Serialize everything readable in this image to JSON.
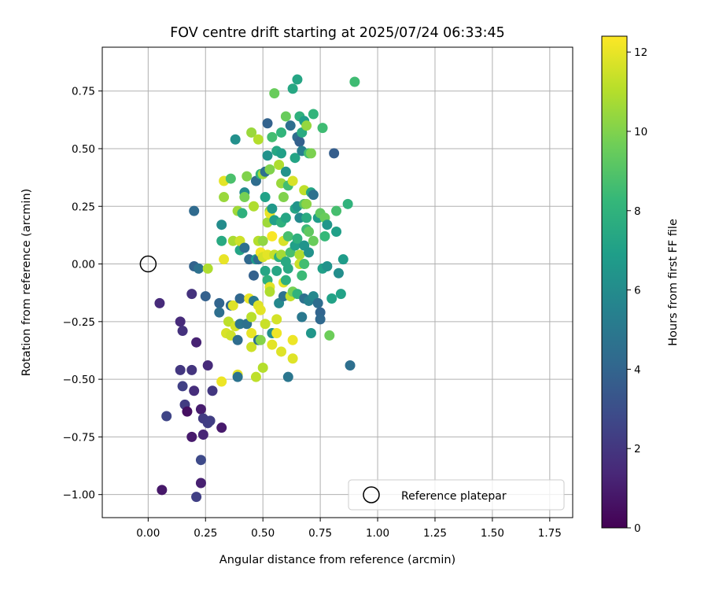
{
  "chart_data": {
    "type": "scatter",
    "title": "FOV centre drift starting at 2025/07/24 06:33:45",
    "xlabel": "Angular distance from reference (arcmin)",
    "ylabel": "Rotation from reference (arcmin)",
    "xlim": [
      -0.2,
      1.85
    ],
    "ylim": [
      -1.1,
      0.94
    ],
    "x_ticks": [
      "0.00",
      "0.25",
      "0.50",
      "0.75",
      "1.00",
      "1.25",
      "1.50",
      "1.75"
    ],
    "x_tick_values": [
      0,
      0.25,
      0.5,
      0.75,
      1.0,
      1.25,
      1.5,
      1.75
    ],
    "y_ticks": [
      "0.75",
      "0.50",
      "0.25",
      "0.00",
      "−0.25",
      "−0.50",
      "−0.75",
      "−1.00"
    ],
    "y_tick_values": [
      0.75,
      0.5,
      0.25,
      0.0,
      -0.25,
      -0.5,
      -0.75,
      -1.0
    ],
    "grid": true,
    "colormap": "viridis",
    "colormap_stops": [
      "#440154",
      "#482878",
      "#3e4989",
      "#31688e",
      "#26828e",
      "#1f9e89",
      "#35b779",
      "#6ece58",
      "#b5de2b",
      "#fde725"
    ],
    "colorbar": {
      "label": "Hours from first FF file",
      "range": [
        0,
        12.4
      ],
      "ticks": [
        "0",
        "2",
        "4",
        "6",
        "8",
        "10",
        "12"
      ],
      "tick_values": [
        0,
        2,
        4,
        6,
        8,
        10,
        12
      ]
    },
    "legend": {
      "placement": "lower-right",
      "entries": [
        "Reference platepar"
      ]
    },
    "reference_point": {
      "x": 0.0,
      "y": 0.0,
      "label": "Reference platepar"
    },
    "points": [
      {
        "x": 0.05,
        "y": -0.17,
        "t": 1.5
      },
      {
        "x": 0.06,
        "y": -0.98,
        "t": 0.8
      },
      {
        "x": 0.08,
        "y": -0.66,
        "t": 2.6
      },
      {
        "x": 0.14,
        "y": -0.25,
        "t": 1.5
      },
      {
        "x": 0.15,
        "y": -0.29,
        "t": 1.8
      },
      {
        "x": 0.14,
        "y": -0.46,
        "t": 2.0
      },
      {
        "x": 0.15,
        "y": -0.53,
        "t": 2.4
      },
      {
        "x": 0.16,
        "y": -0.61,
        "t": 2.2
      },
      {
        "x": 0.17,
        "y": -0.64,
        "t": 0.5
      },
      {
        "x": 0.19,
        "y": -0.13,
        "t": 1.8
      },
      {
        "x": 0.19,
        "y": -0.46,
        "t": 1.9
      },
      {
        "x": 0.19,
        "y": -0.75,
        "t": 0.9
      },
      {
        "x": 0.2,
        "y": -0.55,
        "t": 1.6
      },
      {
        "x": 0.21,
        "y": -0.34,
        "t": 1.2
      },
      {
        "x": 0.21,
        "y": -1.01,
        "t": 2.4
      },
      {
        "x": 0.23,
        "y": -0.63,
        "t": 1.0
      },
      {
        "x": 0.23,
        "y": -0.85,
        "t": 2.8
      },
      {
        "x": 0.24,
        "y": -0.74,
        "t": 1.3
      },
      {
        "x": 0.24,
        "y": -0.67,
        "t": 2.2
      },
      {
        "x": 0.26,
        "y": -0.69,
        "t": 2.3
      },
      {
        "x": 0.26,
        "y": -0.44,
        "t": 1.5
      },
      {
        "x": 0.27,
        "y": -0.68,
        "t": 2.3
      },
      {
        "x": 0.28,
        "y": -0.55,
        "t": 2.0
      },
      {
        "x": 0.23,
        "y": -0.95,
        "t": 1.1
      },
      {
        "x": 0.32,
        "y": -0.71,
        "t": 0.9
      },
      {
        "x": 0.2,
        "y": 0.23,
        "t": 4.3
      },
      {
        "x": 0.2,
        "y": -0.01,
        "t": 3.9
      },
      {
        "x": 0.22,
        "y": -0.02,
        "t": 4.6
      },
      {
        "x": 0.25,
        "y": -0.14,
        "t": 3.8
      },
      {
        "x": 0.26,
        "y": -0.02,
        "t": 10.9
      },
      {
        "x": 0.31,
        "y": -0.17,
        "t": 4.0
      },
      {
        "x": 0.31,
        "y": -0.21,
        "t": 4.5
      },
      {
        "x": 0.32,
        "y": 0.1,
        "t": 7.5
      },
      {
        "x": 0.32,
        "y": 0.17,
        "t": 6.0
      },
      {
        "x": 0.33,
        "y": 0.29,
        "t": 10.5
      },
      {
        "x": 0.33,
        "y": 0.36,
        "t": 11.9
      },
      {
        "x": 0.33,
        "y": 0.02,
        "t": 12.0
      },
      {
        "x": 0.32,
        "y": -0.51,
        "t": 12.1
      },
      {
        "x": 0.34,
        "y": -0.3,
        "t": 11.7
      },
      {
        "x": 0.35,
        "y": -0.25,
        "t": 11.2
      },
      {
        "x": 0.36,
        "y": -0.31,
        "t": 11.5
      },
      {
        "x": 0.36,
        "y": 0.37,
        "t": 8.8
      },
      {
        "x": 0.36,
        "y": -0.18,
        "t": 4.2
      },
      {
        "x": 0.37,
        "y": 0.1,
        "t": 10.8
      },
      {
        "x": 0.37,
        "y": -0.18,
        "t": 11.8
      },
      {
        "x": 0.38,
        "y": 0.54,
        "t": 6.2
      },
      {
        "x": 0.38,
        "y": -0.27,
        "t": 11.6
      },
      {
        "x": 0.39,
        "y": 0.23,
        "t": 10.6
      },
      {
        "x": 0.39,
        "y": -0.33,
        "t": 4.4
      },
      {
        "x": 0.39,
        "y": -0.48,
        "t": 11.9
      },
      {
        "x": 0.39,
        "y": -0.49,
        "t": 4.7
      },
      {
        "x": 0.4,
        "y": 0.06,
        "t": 7.2
      },
      {
        "x": 0.4,
        "y": 0.1,
        "t": 11.5
      },
      {
        "x": 0.4,
        "y": -0.26,
        "t": 4.9
      },
      {
        "x": 0.4,
        "y": -0.15,
        "t": 4.1
      },
      {
        "x": 0.41,
        "y": 0.22,
        "t": 7.9
      },
      {
        "x": 0.42,
        "y": 0.31,
        "t": 6.0
      },
      {
        "x": 0.42,
        "y": 0.07,
        "t": 4.5
      },
      {
        "x": 0.42,
        "y": 0.29,
        "t": 9.8
      },
      {
        "x": 0.43,
        "y": 0.38,
        "t": 10.0
      },
      {
        "x": 0.43,
        "y": -0.26,
        "t": 4.6
      },
      {
        "x": 0.44,
        "y": 0.02,
        "t": 4.2
      },
      {
        "x": 0.44,
        "y": -0.15,
        "t": 12.0
      },
      {
        "x": 0.45,
        "y": -0.23,
        "t": 11.1
      },
      {
        "x": 0.45,
        "y": -0.3,
        "t": 12.0
      },
      {
        "x": 0.45,
        "y": 0.57,
        "t": 10.5
      },
      {
        "x": 0.45,
        "y": -0.36,
        "t": 11.5
      },
      {
        "x": 0.46,
        "y": 0.25,
        "t": 10.9
      },
      {
        "x": 0.46,
        "y": -0.16,
        "t": 5.0
      },
      {
        "x": 0.46,
        "y": -0.05,
        "t": 3.8
      },
      {
        "x": 0.47,
        "y": 0.36,
        "t": 4.4
      },
      {
        "x": 0.47,
        "y": 0.02,
        "t": 6.8
      },
      {
        "x": 0.47,
        "y": -0.49,
        "t": 11.2
      },
      {
        "x": 0.48,
        "y": 0.1,
        "t": 11.0
      },
      {
        "x": 0.48,
        "y": 0.54,
        "t": 11.0
      },
      {
        "x": 0.48,
        "y": 0.02,
        "t": 4.4
      },
      {
        "x": 0.48,
        "y": -0.18,
        "t": 11.8
      },
      {
        "x": 0.48,
        "y": -0.33,
        "t": 4.5
      },
      {
        "x": 0.49,
        "y": -0.2,
        "t": 11.9
      },
      {
        "x": 0.49,
        "y": -0.33,
        "t": 10.1
      },
      {
        "x": 0.49,
        "y": 0.39,
        "t": 8.1
      },
      {
        "x": 0.49,
        "y": 0.05,
        "t": 12.2
      },
      {
        "x": 0.5,
        "y": 0.03,
        "t": 11.6
      },
      {
        "x": 0.5,
        "y": 0.39,
        "t": 10.6
      },
      {
        "x": 0.5,
        "y": -0.45,
        "t": 11.0
      },
      {
        "x": 0.5,
        "y": 0.1,
        "t": 10.3
      },
      {
        "x": 0.51,
        "y": 0.29,
        "t": 7.1
      },
      {
        "x": 0.51,
        "y": -0.03,
        "t": 7.3
      },
      {
        "x": 0.51,
        "y": 0.4,
        "t": 4.5
      },
      {
        "x": 0.51,
        "y": -0.26,
        "t": 11.4
      },
      {
        "x": 0.52,
        "y": 0.47,
        "t": 6.3
      },
      {
        "x": 0.52,
        "y": 0.04,
        "t": 11.9
      },
      {
        "x": 0.52,
        "y": 0.18,
        "t": 10.6
      },
      {
        "x": 0.52,
        "y": 0.61,
        "t": 3.9
      },
      {
        "x": 0.52,
        "y": -0.07,
        "t": 7.9
      },
      {
        "x": 0.53,
        "y": 0.23,
        "t": 10.2
      },
      {
        "x": 0.53,
        "y": -0.1,
        "t": 11.9
      },
      {
        "x": 0.53,
        "y": 0.41,
        "t": 10.0
      },
      {
        "x": 0.53,
        "y": -0.12,
        "t": 10.9
      },
      {
        "x": 0.53,
        "y": 0.22,
        "t": 12.0
      },
      {
        "x": 0.54,
        "y": 0.24,
        "t": 6.6
      },
      {
        "x": 0.54,
        "y": 0.12,
        "t": 12.3
      },
      {
        "x": 0.54,
        "y": -0.3,
        "t": 6.1
      },
      {
        "x": 0.54,
        "y": -0.35,
        "t": 11.9
      },
      {
        "x": 0.54,
        "y": 0.55,
        "t": 8.6
      },
      {
        "x": 0.55,
        "y": 0.74,
        "t": 9.5
      },
      {
        "x": 0.55,
        "y": 0.04,
        "t": 11.3
      },
      {
        "x": 0.55,
        "y": 0.19,
        "t": 7.0
      },
      {
        "x": 0.56,
        "y": -0.03,
        "t": 7.3
      },
      {
        "x": 0.56,
        "y": -0.24,
        "t": 11.6
      },
      {
        "x": 0.56,
        "y": 0.49,
        "t": 7.4
      },
      {
        "x": 0.56,
        "y": -0.3,
        "t": 12.1
      },
      {
        "x": 0.57,
        "y": 0.03,
        "t": 7.8
      },
      {
        "x": 0.57,
        "y": 0.43,
        "t": 10.9
      },
      {
        "x": 0.57,
        "y": -0.17,
        "t": 5.8
      },
      {
        "x": 0.58,
        "y": 0.04,
        "t": 10.7
      },
      {
        "x": 0.58,
        "y": 0.35,
        "t": 10.5
      },
      {
        "x": 0.58,
        "y": 0.48,
        "t": 7.0
      },
      {
        "x": 0.58,
        "y": 0.18,
        "t": 7.9
      },
      {
        "x": 0.58,
        "y": -0.38,
        "t": 11.8
      },
      {
        "x": 0.58,
        "y": 0.57,
        "t": 8.1
      },
      {
        "x": 0.59,
        "y": 0.1,
        "t": 11.7
      },
      {
        "x": 0.59,
        "y": -0.14,
        "t": 4.7
      },
      {
        "x": 0.59,
        "y": 0.29,
        "t": 10.0
      },
      {
        "x": 0.59,
        "y": -0.08,
        "t": 11.9
      },
      {
        "x": 0.6,
        "y": 0.64,
        "t": 9.5
      },
      {
        "x": 0.6,
        "y": 0.01,
        "t": 7.5
      },
      {
        "x": 0.6,
        "y": -0.07,
        "t": 7.8
      },
      {
        "x": 0.6,
        "y": 0.4,
        "t": 6.3
      },
      {
        "x": 0.6,
        "y": 0.2,
        "t": 7.3
      },
      {
        "x": 0.61,
        "y": -0.49,
        "t": 4.9
      },
      {
        "x": 0.61,
        "y": 0.12,
        "t": 8.7
      },
      {
        "x": 0.61,
        "y": -0.02,
        "t": 7.5
      },
      {
        "x": 0.61,
        "y": 0.34,
        "t": 8.6
      },
      {
        "x": 0.62,
        "y": 0.6,
        "t": 4.5
      },
      {
        "x": 0.62,
        "y": -0.14,
        "t": 11.3
      },
      {
        "x": 0.62,
        "y": 0.05,
        "t": 8.7
      },
      {
        "x": 0.63,
        "y": 0.36,
        "t": 11.7
      },
      {
        "x": 0.63,
        "y": -0.33,
        "t": 12.1
      },
      {
        "x": 0.63,
        "y": -0.41,
        "t": 11.8
      },
      {
        "x": 0.63,
        "y": 0.76,
        "t": 7.4
      },
      {
        "x": 0.63,
        "y": -0.12,
        "t": 9.8
      },
      {
        "x": 0.64,
        "y": 0.08,
        "t": 7.0
      },
      {
        "x": 0.64,
        "y": 0.24,
        "t": 7.3
      },
      {
        "x": 0.64,
        "y": 0.46,
        "t": 7.2
      },
      {
        "x": 0.65,
        "y": 0.55,
        "t": 4.4
      },
      {
        "x": 0.65,
        "y": 0.8,
        "t": 7.3
      },
      {
        "x": 0.65,
        "y": 0.25,
        "t": 6.4
      },
      {
        "x": 0.65,
        "y": -0.13,
        "t": 8.0
      },
      {
        "x": 0.65,
        "y": 0.11,
        "t": 7.9
      },
      {
        "x": 0.66,
        "y": 0.64,
        "t": 7.9
      },
      {
        "x": 0.66,
        "y": 0.04,
        "t": 10.9
      },
      {
        "x": 0.66,
        "y": 0.53,
        "t": 3.8
      },
      {
        "x": 0.66,
        "y": 0.2,
        "t": 5.9
      },
      {
        "x": 0.66,
        "y": 0.0,
        "t": 11.4
      },
      {
        "x": 0.67,
        "y": -0.05,
        "t": 8.4
      },
      {
        "x": 0.67,
        "y": 0.57,
        "t": 7.6
      },
      {
        "x": 0.67,
        "y": -0.23,
        "t": 5.0
      },
      {
        "x": 0.67,
        "y": 0.49,
        "t": 5.4
      },
      {
        "x": 0.68,
        "y": 0.32,
        "t": 11.2
      },
      {
        "x": 0.68,
        "y": -0.15,
        "t": 4.6
      },
      {
        "x": 0.68,
        "y": 0.08,
        "t": 6.4
      },
      {
        "x": 0.68,
        "y": 0.26,
        "t": 9.1
      },
      {
        "x": 0.68,
        "y": 0.0,
        "t": 8.6
      },
      {
        "x": 0.68,
        "y": 0.62,
        "t": 6.9
      },
      {
        "x": 0.69,
        "y": 0.15,
        "t": 8.4
      },
      {
        "x": 0.69,
        "y": 0.2,
        "t": 7.6
      },
      {
        "x": 0.69,
        "y": 0.6,
        "t": 10.4
      },
      {
        "x": 0.69,
        "y": 0.26,
        "t": 10.2
      },
      {
        "x": 0.7,
        "y": 0.14,
        "t": 9.3
      },
      {
        "x": 0.7,
        "y": 0.48,
        "t": 8.6
      },
      {
        "x": 0.7,
        "y": -0.16,
        "t": 5.4
      },
      {
        "x": 0.7,
        "y": 0.05,
        "t": 6.3
      },
      {
        "x": 0.71,
        "y": -0.3,
        "t": 6.5
      },
      {
        "x": 0.71,
        "y": 0.48,
        "t": 9.9
      },
      {
        "x": 0.71,
        "y": 0.31,
        "t": 7.3
      },
      {
        "x": 0.72,
        "y": 0.65,
        "t": 8.1
      },
      {
        "x": 0.72,
        "y": 0.3,
        "t": 4.6
      },
      {
        "x": 0.72,
        "y": -0.14,
        "t": 5.8
      },
      {
        "x": 0.72,
        "y": 0.1,
        "t": 9.5
      },
      {
        "x": 0.74,
        "y": 0.2,
        "t": 6.8
      },
      {
        "x": 0.74,
        "y": -0.17,
        "t": 4.4
      },
      {
        "x": 0.75,
        "y": -0.21,
        "t": 4.0
      },
      {
        "x": 0.75,
        "y": 0.22,
        "t": 9.3
      },
      {
        "x": 0.75,
        "y": -0.24,
        "t": 4.2
      },
      {
        "x": 0.76,
        "y": -0.02,
        "t": 7.0
      },
      {
        "x": 0.76,
        "y": 0.59,
        "t": 8.5
      },
      {
        "x": 0.77,
        "y": 0.2,
        "t": 9.5
      },
      {
        "x": 0.77,
        "y": 0.12,
        "t": 8.3
      },
      {
        "x": 0.78,
        "y": -0.01,
        "t": 6.3
      },
      {
        "x": 0.78,
        "y": 0.17,
        "t": 6.5
      },
      {
        "x": 0.79,
        "y": -0.31,
        "t": 9.6
      },
      {
        "x": 0.8,
        "y": -0.15,
        "t": 7.1
      },
      {
        "x": 0.81,
        "y": 0.48,
        "t": 3.7
      },
      {
        "x": 0.82,
        "y": 0.23,
        "t": 8.7
      },
      {
        "x": 0.82,
        "y": 0.14,
        "t": 7.0
      },
      {
        "x": 0.83,
        "y": -0.04,
        "t": 6.1
      },
      {
        "x": 0.84,
        "y": -0.13,
        "t": 7.1
      },
      {
        "x": 0.85,
        "y": 0.02,
        "t": 6.8
      },
      {
        "x": 0.87,
        "y": 0.26,
        "t": 8.0
      },
      {
        "x": 0.88,
        "y": -0.44,
        "t": 4.5
      },
      {
        "x": 0.9,
        "y": 0.79,
        "t": 8.5
      }
    ]
  }
}
